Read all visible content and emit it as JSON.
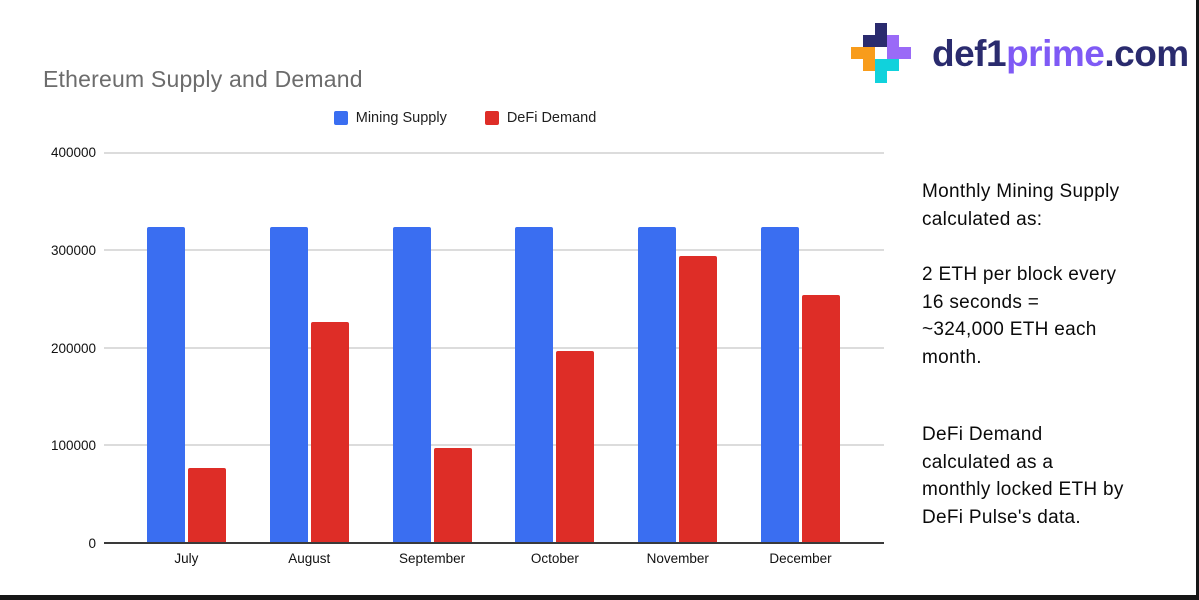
{
  "page": {
    "background": "#ffffff",
    "frame_border_color": "#161616"
  },
  "logo": {
    "text_defi": "def1",
    "text_prime": "prime",
    "text_com": ".com",
    "colors": {
      "navy": "#2a2b6e",
      "purple": "#9a6af7",
      "orange": "#f89c1b",
      "cyan": "#10d2dc",
      "wordmark_navy": "#2a2b6e",
      "wordmark_purple": "#7f5af5"
    }
  },
  "chart_data": {
    "type": "bar",
    "title": "Ethereum Supply and Demand",
    "categories": [
      "July",
      "August",
      "September",
      "October",
      "November",
      "December"
    ],
    "series": [
      {
        "name": "Mining Supply",
        "color": "#3a6ef1",
        "values": [
          324000,
          324000,
          324000,
          324000,
          324000,
          324000
        ]
      },
      {
        "name": "DeFi Demand",
        "color": "#de2d27",
        "values": [
          76000,
          226000,
          97000,
          196000,
          294000,
          254000
        ]
      }
    ],
    "xlabel": "",
    "ylabel": "",
    "ylim": [
      0,
      400000
    ],
    "yticks": [
      0,
      100000,
      200000,
      300000,
      400000
    ],
    "grid": true,
    "legend_position": "top",
    "gridline_color": "#dcdcdc",
    "axis_line_color": "#3a3a3a",
    "title_color": "#6c6c6c"
  },
  "notes": {
    "mining": {
      "lines": [
        "Monthly Mining Supply",
        "calculated as:"
      ]
    },
    "formula": {
      "lines": [
        "2 ETH per block every",
        "16 seconds =",
        "~324,000 ETH each",
        "month."
      ]
    },
    "defi": {
      "lines": [
        "DeFi Demand",
        "calculated as a",
        "monthly locked ETH by",
        "DeFi Pulse's data."
      ]
    }
  }
}
